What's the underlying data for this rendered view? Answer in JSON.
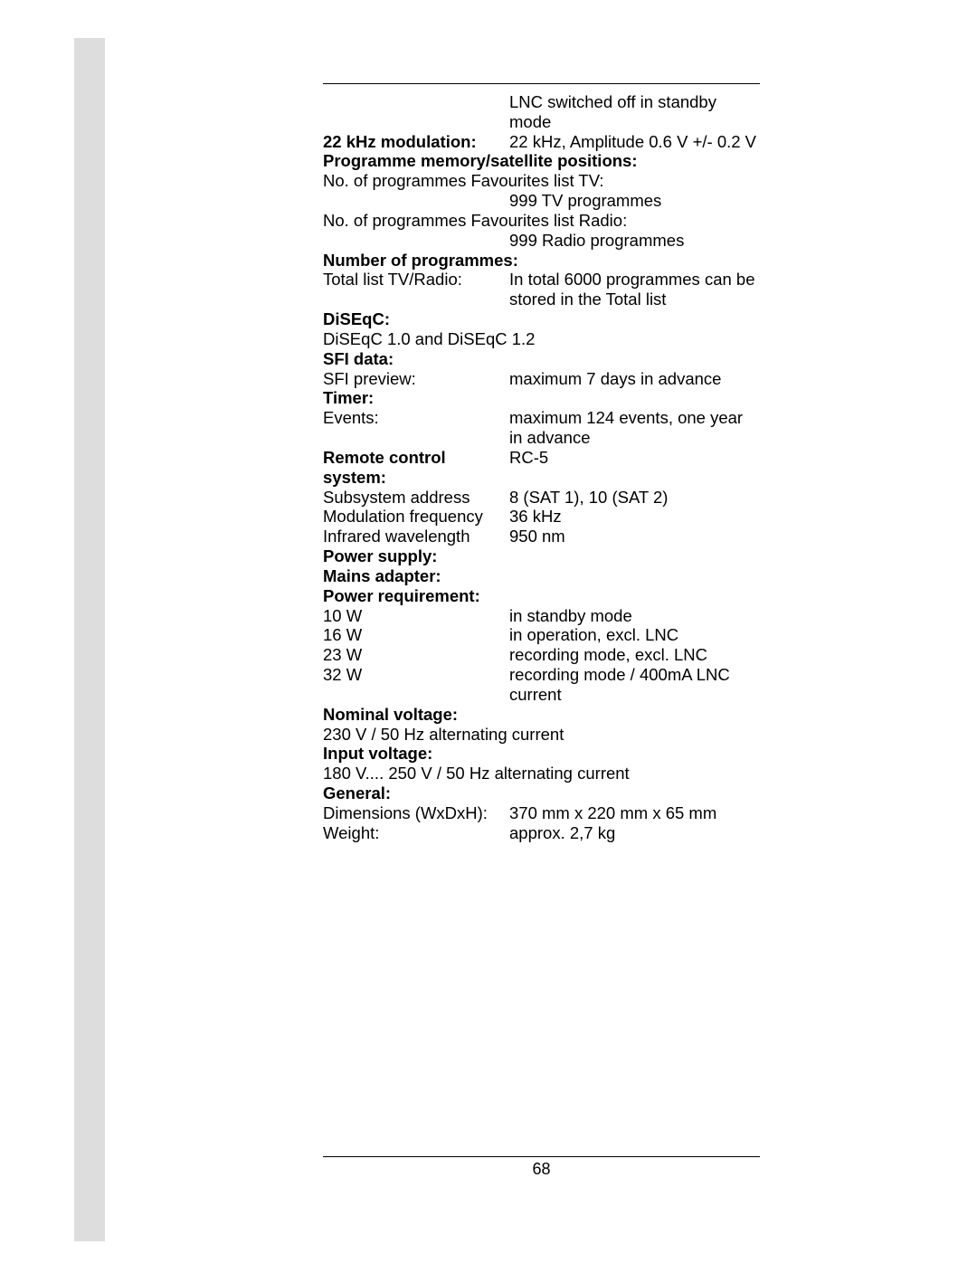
{
  "page_number": "68",
  "colors": {
    "sidebar": "#dddddd",
    "page": "#ffffff",
    "text": "#000000"
  },
  "font_size_pt": 18.5,
  "rows": [
    {
      "label": "",
      "value": "LNC switched off in standby mode",
      "label_bold": false
    },
    {
      "label": "22 kHz modulation:",
      "value": "22 kHz, Amplitude 0.6 V +/- 0.2 V",
      "label_bold": true
    },
    {
      "full": "Programme memory/satellite positions:",
      "bold": true
    },
    {
      "full": "No. of programmes Favourites list TV:",
      "bold": false
    },
    {
      "label": "",
      "value": "999 TV programmes",
      "label_bold": false
    },
    {
      "full": "No. of programmes Favourites list Radio:",
      "bold": false
    },
    {
      "label": "",
      "value": "999 Radio programmes",
      "label_bold": false
    },
    {
      "full": "Number of programmes:",
      "bold": true
    },
    {
      "label": "Total list TV/Radio:",
      "value": "In total 6000 programmes can be stored in the Total list",
      "label_bold": false
    },
    {
      "full": "DiSEqC:",
      "bold": true
    },
    {
      "full": "DiSEqC 1.0 and DiSEqC 1.2",
      "bold": false
    },
    {
      "full": "SFI data:",
      "bold": true
    },
    {
      "label": "SFI preview:",
      "value": "maximum 7 days in advance",
      "label_bold": false
    },
    {
      "full": "Timer:",
      "bold": true
    },
    {
      "label": "Events:",
      "value": "maximum 124 events, one year in advance",
      "label_bold": false
    },
    {
      "label": "Remote control system:",
      "value": "RC-5",
      "label_bold": true
    },
    {
      "label": "Subsystem address",
      "value": "8 (SAT 1), 10 (SAT 2)",
      "label_bold": false
    },
    {
      "label": "Modulation frequency",
      "value": "36 kHz",
      "label_bold": false
    },
    {
      "label": "Infrared wavelength",
      "value": "950 nm",
      "label_bold": false
    },
    {
      "full": "Power supply:",
      "bold": true
    },
    {
      "full": "Mains adapter:",
      "bold": true
    },
    {
      "full": "Power requirement:",
      "bold": true
    },
    {
      "label": "10 W",
      "value": "in standby mode",
      "label_bold": false
    },
    {
      "label": "16 W",
      "value": "in operation,  excl. LNC",
      "label_bold": false
    },
    {
      "label": "23 W",
      "value": "recording mode, excl. LNC",
      "label_bold": false
    },
    {
      "label": "32 W",
      "value": "recording mode / 400mA LNC current",
      "label_bold": false
    },
    {
      "full": "Nominal voltage:",
      "bold": true
    },
    {
      "full": "230 V / 50 Hz alternating current",
      "bold": false
    },
    {
      "full": "Input voltage:",
      "bold": true
    },
    {
      "full": "180 V.... 250 V / 50 Hz alternating current",
      "bold": false
    },
    {
      "full": "General:",
      "bold": true
    },
    {
      "label": "Dimensions (WxDxH):",
      "value": "370 mm x 220 mm x 65 mm",
      "label_bold": false
    },
    {
      "label": "Weight:",
      "value": "approx. 2,7 kg",
      "label_bold": false
    }
  ]
}
